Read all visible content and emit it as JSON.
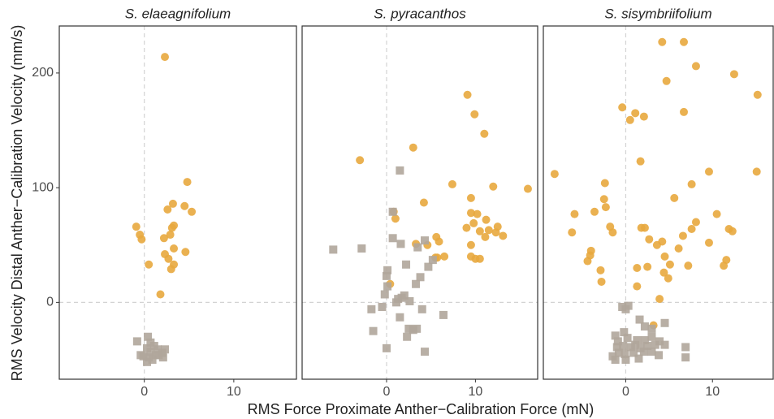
{
  "xlabel": "RMS Force Proximate Anther−Calibration Force (mN)",
  "ylabel": "RMS Velocity Distal Anther−Calibration Velocity (mm/s)",
  "chart_data": [
    {
      "type": "scatter",
      "title": "S. elaeagnifolium",
      "xlim": [
        -9.5,
        17
      ],
      "ylim": [
        -67,
        241
      ],
      "xticks": [
        0,
        10
      ],
      "yticks": [
        0,
        100,
        200
      ],
      "hline": 0,
      "vline": 0,
      "series": [
        {
          "color": "#e8a93e",
          "marker": "circle",
          "x": [
            2.3,
            4.8,
            3.2,
            4.5,
            2.6,
            5.3,
            3.3,
            3.1,
            -0.9,
            -0.5,
            -0.3,
            2.9,
            2.2,
            3.3,
            4.6,
            2.3,
            2.7,
            3.3,
            3.0,
            0.5,
            1.8
          ],
          "values": [
            214,
            105,
            86,
            84,
            81,
            79,
            67,
            65,
            66,
            59,
            55,
            59,
            56,
            47,
            44,
            42,
            38,
            33,
            29,
            33,
            7
          ]
        },
        {
          "color": "#b0a69b",
          "marker": "square",
          "x": [
            -0.8,
            0.4,
            0.7,
            1.1,
            0.3,
            1.5,
            2.3,
            2.0,
            0.7,
            -0.1,
            0.5,
            1.3,
            2.1,
            0.3,
            0.9,
            1.6,
            -0.4
          ],
          "values": [
            -34,
            -30,
            -35,
            -38,
            -40,
            -41,
            -41,
            -44,
            -43,
            -47,
            -48,
            -46,
            -48,
            -52,
            -50,
            -46,
            -46
          ]
        }
      ]
    },
    {
      "type": "scatter",
      "title": "S. pyracanthos",
      "xlim": [
        -9.5,
        17
      ],
      "ylim": [
        -67,
        241
      ],
      "xticks": [
        0,
        10
      ],
      "hline": 0,
      "vline": 0,
      "series": [
        {
          "color": "#e8a93e",
          "marker": "circle",
          "x": [
            9.1,
            9.9,
            11.0,
            3.0,
            -3.0,
            15.9,
            7.4,
            12.0,
            4.2,
            9.5,
            10.2,
            11.2,
            9.5,
            9.8,
            11.5,
            12.5,
            12.3,
            10.5,
            11.1,
            13.1,
            9.0,
            5.6,
            5.9,
            3.3,
            4.6,
            9.5,
            6.5,
            5.5,
            5.7,
            9.5,
            10.0,
            10.5,
            0.8,
            1.0,
            0.4
          ],
          "values": [
            181,
            164,
            147,
            135,
            124,
            99,
            103,
            101,
            87,
            91,
            77,
            72,
            78,
            69,
            63,
            66,
            61,
            62,
            57,
            58,
            65,
            57,
            53,
            51,
            50,
            50,
            40,
            39,
            39,
            40,
            38,
            38,
            79,
            73,
            16
          ]
        },
        {
          "color": "#b0a69b",
          "marker": "square",
          "x": [
            -6.0,
            -2.8,
            1.5,
            0.7,
            0.7,
            1.6,
            4.3,
            3.5,
            2.2,
            4.7,
            5.2,
            3.8,
            0.1,
            0,
            3.3,
            0.1,
            -0.2,
            1.3,
            2.0,
            1.7,
            1.1,
            2.6,
            -1.7,
            -0.5,
            4.0,
            6.4,
            1.5,
            -1.5,
            2.5,
            3.0,
            3.4,
            2.3,
            0,
            4.3
          ],
          "values": [
            46,
            47,
            115,
            79,
            56,
            51,
            54,
            48,
            33,
            31,
            37,
            22,
            28,
            23,
            16,
            14,
            7,
            3,
            6,
            4,
            0,
            1,
            -6,
            -4,
            -6,
            -11,
            -13,
            -25,
            -23,
            -24,
            -23,
            -30,
            -40,
            -43
          ]
        }
      ]
    },
    {
      "type": "scatter",
      "title": "S. sisymbriifolium",
      "xlim": [
        -9.5,
        17
      ],
      "ylim": [
        -67,
        241
      ],
      "xticks": [
        0,
        10
      ],
      "hline": 0,
      "vline": 0,
      "series": [
        {
          "color": "#e8a93e",
          "marker": "circle",
          "x": [
            4.2,
            6.7,
            8.1,
            2.1,
            0.5,
            1.1,
            -0.4,
            4.7,
            12.5,
            6.7,
            15.2,
            -8.2,
            1.7,
            9.6,
            15.1,
            -2.4,
            7.6,
            -2.5,
            5.6,
            -5.9,
            -3.6,
            -2.3,
            10.5,
            -6.2,
            -1.8,
            -1.5,
            1.8,
            2.2,
            8.1,
            7.6,
            6.6,
            11.9,
            12.3,
            2.7,
            4.2,
            3.6,
            9.6,
            -4.0,
            -4.1,
            -4.4,
            4.5,
            1.3,
            2.5,
            5.1,
            7.2,
            11.3,
            11.6,
            6.1,
            -2.9,
            -2.8,
            4.4,
            4.9,
            1.3,
            3.9,
            3.2
          ],
          "values": [
            227,
            227,
            206,
            162,
            159,
            165,
            170,
            193,
            199,
            166,
            181,
            112,
            123,
            114,
            114,
            104,
            103,
            90,
            91,
            77,
            79,
            83,
            77,
            61,
            66,
            61,
            65,
            65,
            70,
            64,
            58,
            64,
            62,
            55,
            53,
            50,
            52,
            45,
            41,
            36,
            40,
            30,
            31,
            33,
            32,
            32,
            37,
            47,
            28,
            18,
            26,
            21,
            14,
            3,
            -20
          ]
        },
        {
          "color": "#b0a69b",
          "marker": "square",
          "x": [
            -0.4,
            0.3,
            0,
            -1.2,
            -0.2,
            1.6,
            2.2,
            3.0,
            4.5,
            -0.9,
            0.2,
            1.3,
            2.2,
            3.0,
            3.9,
            -1.0,
            -0.3,
            0.6,
            1.7,
            2.5,
            3.4,
            4.5,
            6.9,
            -0.8,
            -0.1,
            0.9,
            2.1,
            3.0,
            3.8,
            -1.2,
            0,
            1.5,
            6.9,
            -1.5,
            1.1
          ],
          "values": [
            -4,
            -3,
            -6,
            -29,
            -26,
            -15,
            -21,
            -23,
            -18,
            -34,
            -31,
            -33,
            -33,
            -30,
            -34,
            -39,
            -38,
            -39,
            -40,
            -38,
            -37,
            -37,
            -39,
            -44,
            -45,
            -44,
            -43,
            -43,
            -46,
            -50,
            -50,
            -49,
            -48,
            -47,
            -37
          ]
        }
      ]
    }
  ]
}
